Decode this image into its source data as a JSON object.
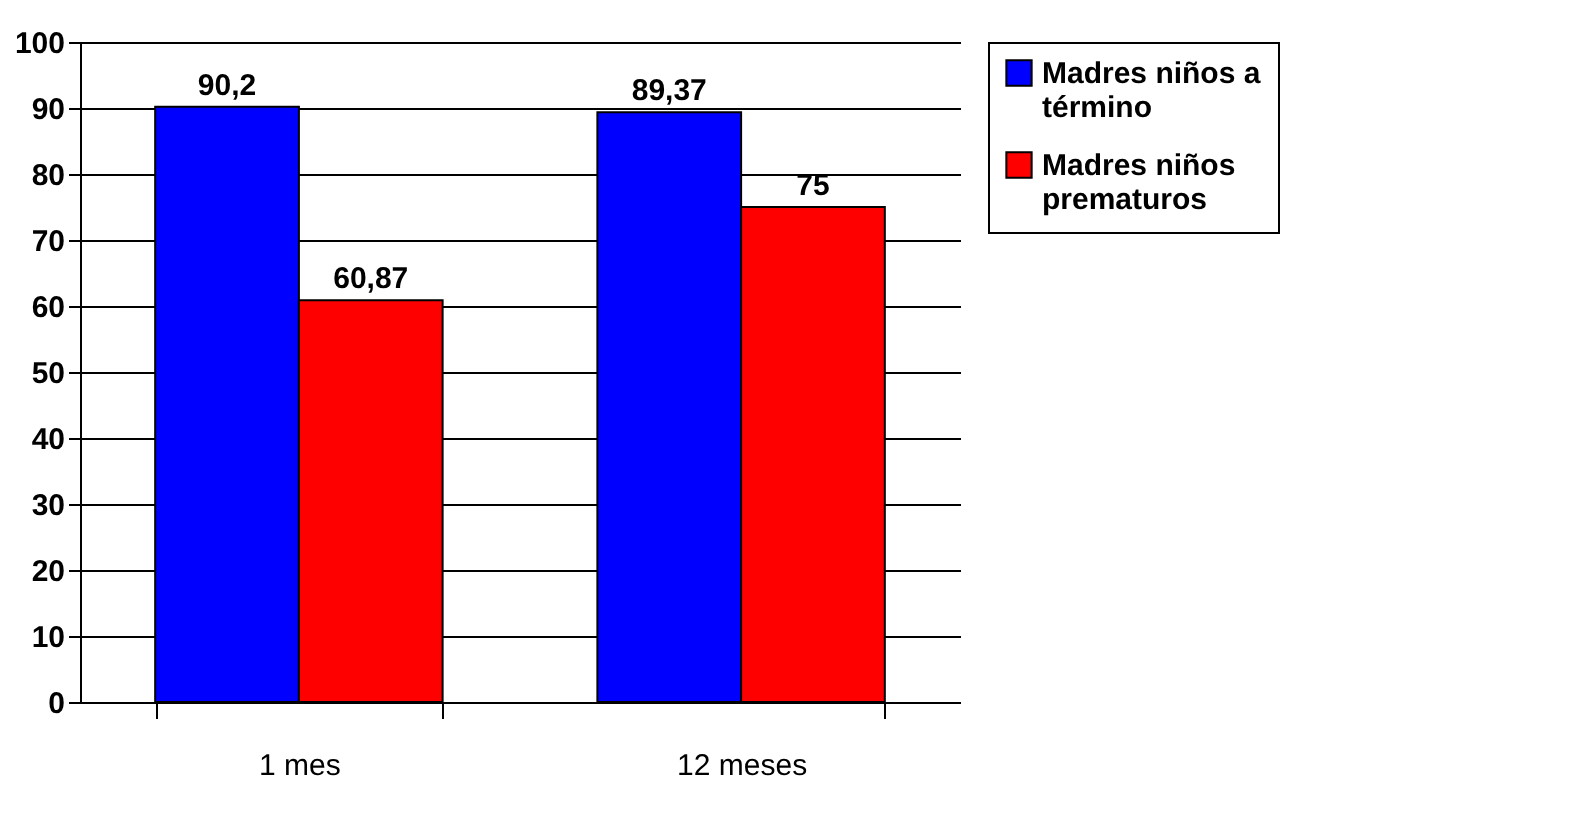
{
  "chart_data": {
    "type": "bar",
    "categories": [
      "1 mes",
      "12 meses"
    ],
    "series": [
      {
        "name": "Madres niños a término",
        "color": "#0000ff",
        "values": [
          90.2,
          89.37
        ],
        "value_labels": [
          "90,2",
          "89,37"
        ]
      },
      {
        "name": "Madres niños prematuros",
        "color": "#ff0000",
        "values": [
          60.87,
          75
        ],
        "value_labels": [
          "60,87",
          "75"
        ]
      }
    ],
    "ylim": [
      0,
      100
    ],
    "yticks": [
      0,
      10,
      20,
      30,
      40,
      50,
      60,
      70,
      80,
      90,
      100
    ],
    "grid": "y",
    "legend": "right"
  }
}
